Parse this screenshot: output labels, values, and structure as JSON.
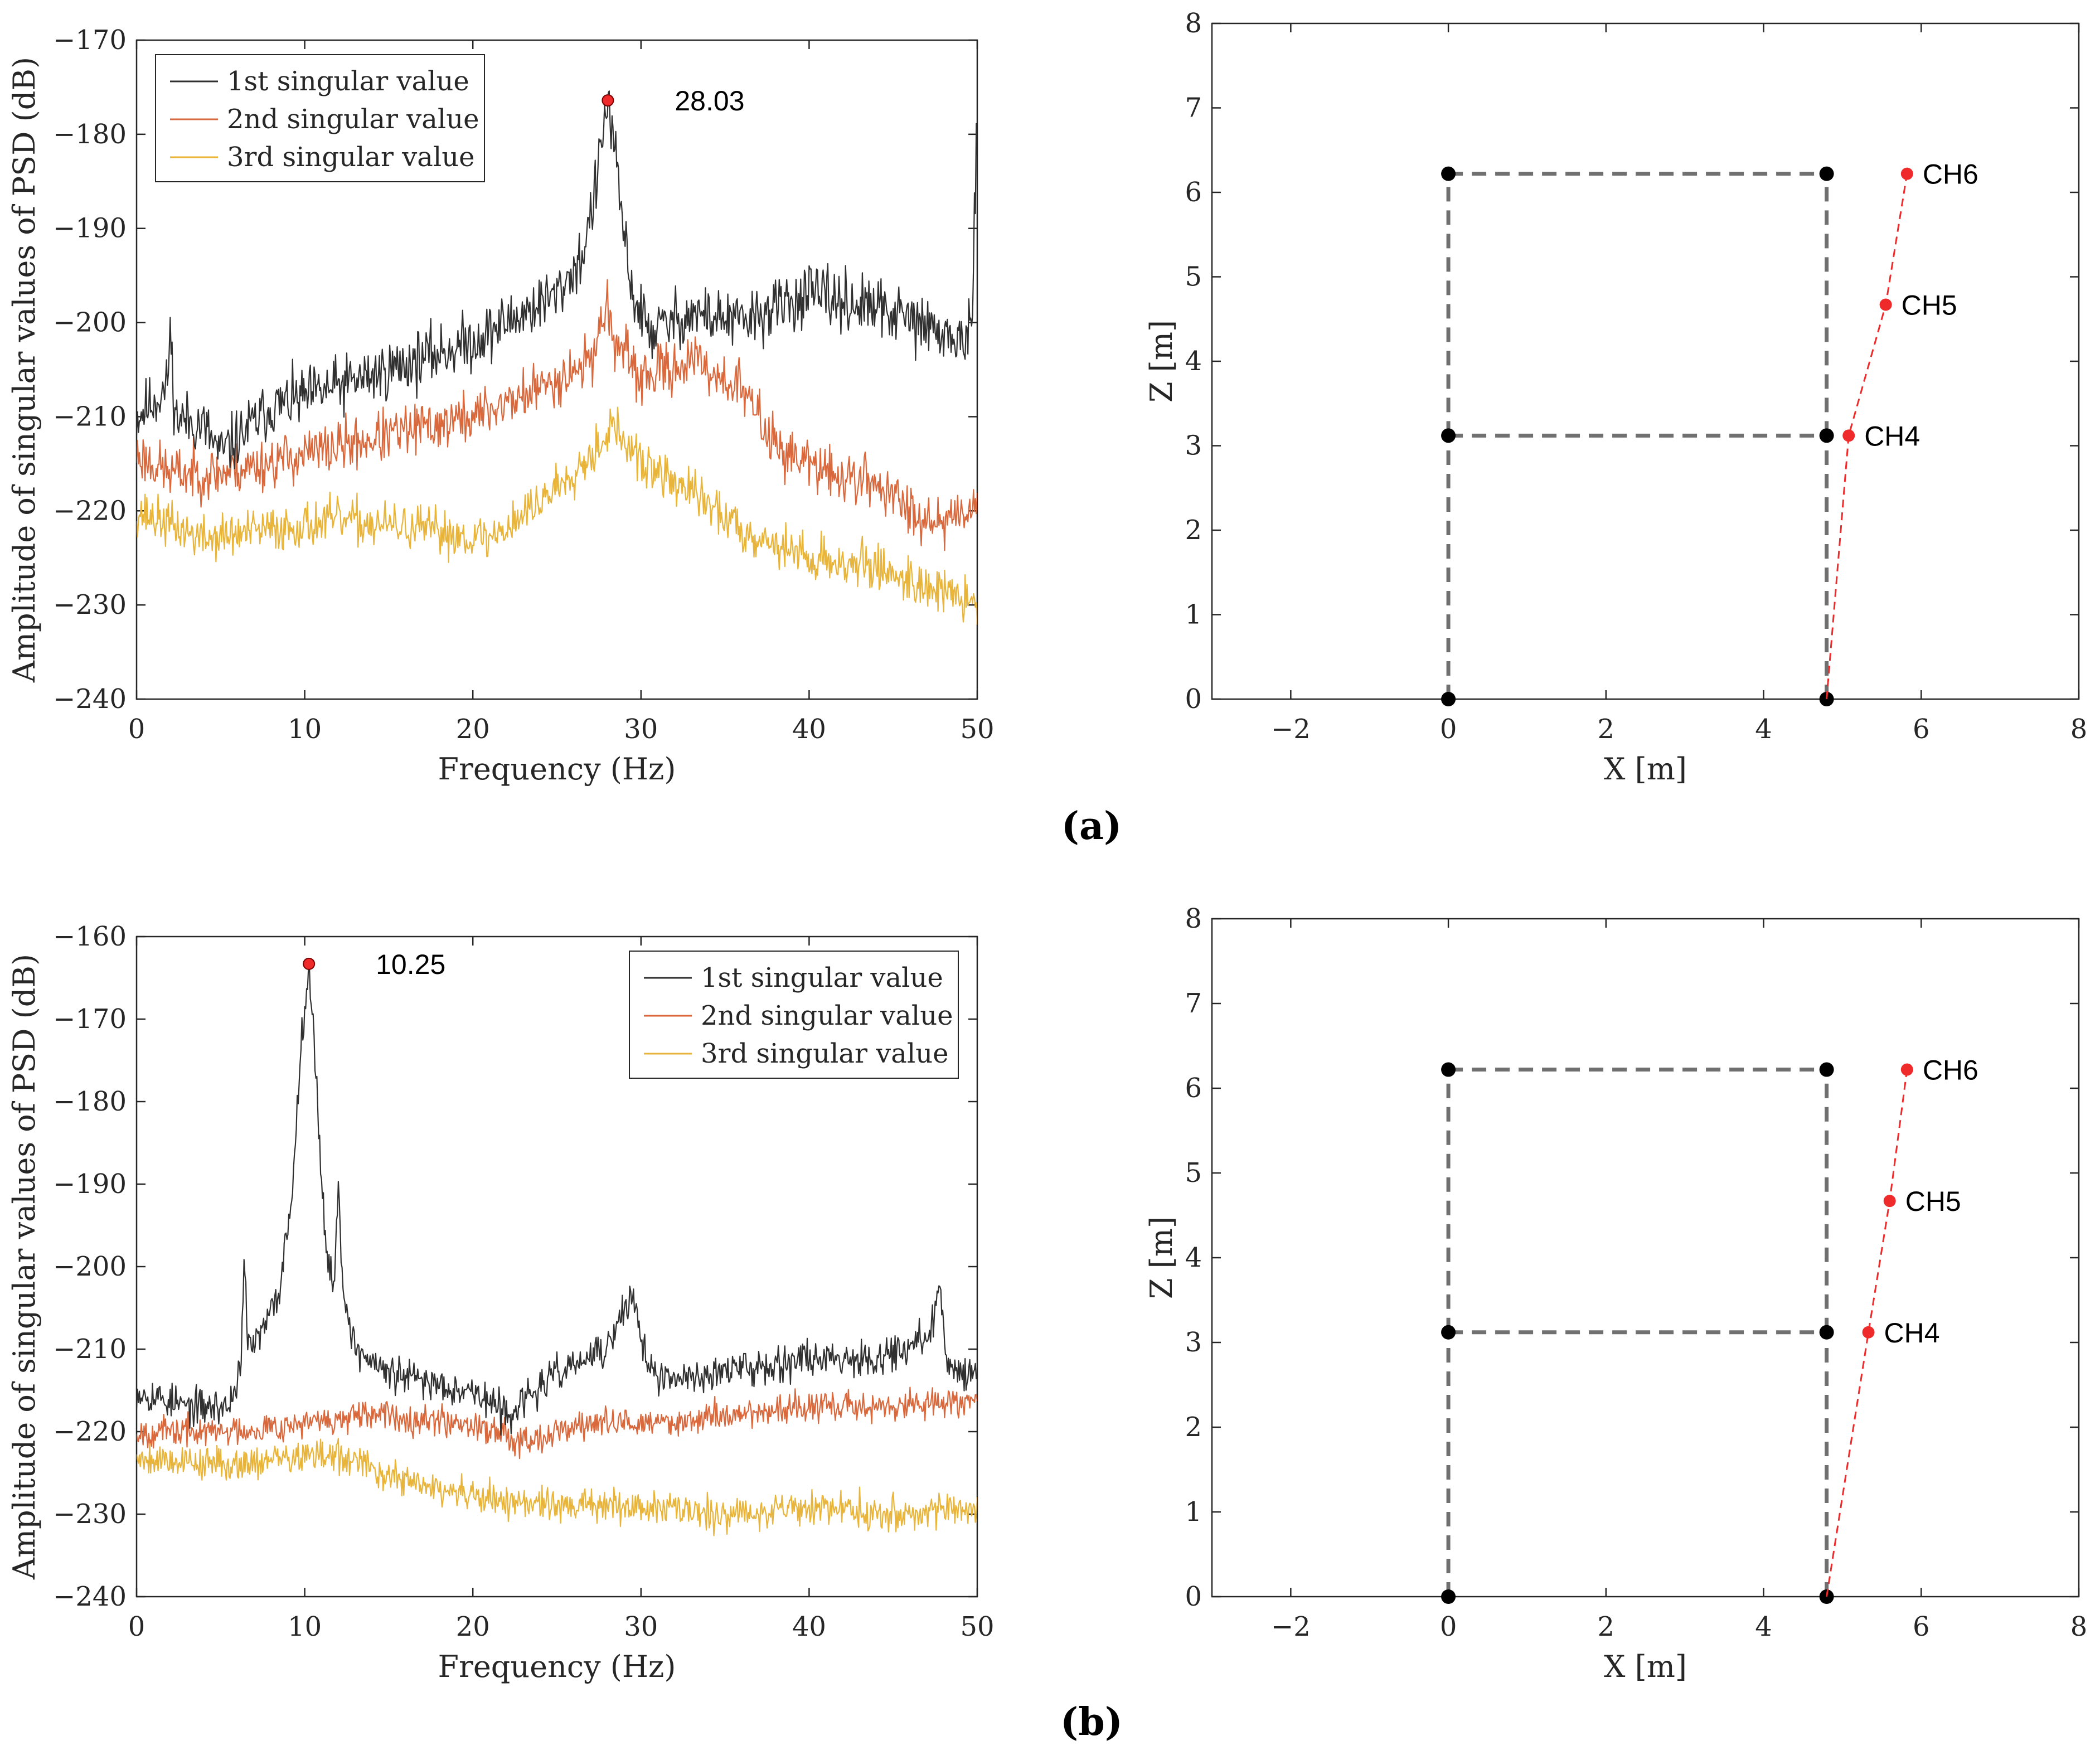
{
  "panels": [
    {
      "id": "a",
      "label": "(a)",
      "psd_chart": {
        "type": "line",
        "xlabel": "Frequency (Hz)",
        "ylabel": "Amplitude of singular values of PSD (dB)",
        "xlim": [
          0,
          50
        ],
        "ylim": [
          -240,
          -170
        ],
        "xticks": [
          0,
          10,
          20,
          30,
          40,
          50
        ],
        "yticks": [
          -240,
          -230,
          -220,
          -210,
          -200,
          -190,
          -180,
          -170
        ],
        "legend_position": "top-left",
        "peak": {
          "x": 28.03,
          "y": -176.4,
          "label": "28.03"
        },
        "series": [
          {
            "name": "1st singular value",
            "color": "#303030",
            "profile": [
              [
                0,
                -210
              ],
              [
                1.8,
                -207
              ],
              [
                2,
                -201
              ],
              [
                2.3,
                -210
              ],
              [
                4,
                -211
              ],
              [
                5,
                -214
              ],
              [
                8,
                -209
              ],
              [
                10,
                -208
              ],
              [
                15,
                -205
              ],
              [
                20,
                -202
              ],
              [
                23,
                -199
              ],
              [
                25,
                -197
              ],
              [
                26.5,
                -193
              ],
              [
                27.3,
                -186
              ],
              [
                27.8,
                -179
              ],
              [
                28.03,
                -176.4
              ],
              [
                28.3,
                -180
              ],
              [
                28.8,
                -188
              ],
              [
                29.5,
                -197
              ],
              [
                30.5,
                -201
              ],
              [
                33,
                -199
              ],
              [
                36,
                -200
              ],
              [
                40,
                -197
              ],
              [
                45,
                -199
              ],
              [
                49,
                -202
              ],
              [
                49.7,
                -201
              ],
              [
                50,
                -178
              ]
            ],
            "noise": 2.6,
            "seed": 11
          },
          {
            "name": "2nd singular value",
            "color": "#d9693d",
            "profile": [
              [
                0,
                -214
              ],
              [
                2,
                -216
              ],
              [
                5,
                -216
              ],
              [
                10,
                -214
              ],
              [
                15,
                -212
              ],
              [
                20,
                -210
              ],
              [
                24,
                -207
              ],
              [
                27,
                -204
              ],
              [
                28,
                -198
              ],
              [
                28.4,
                -202
              ],
              [
                30,
                -206
              ],
              [
                33,
                -204
              ],
              [
                36,
                -207
              ],
              [
                38,
                -213
              ],
              [
                41,
                -216
              ],
              [
                44,
                -217
              ],
              [
                46,
                -220
              ],
              [
                48,
                -221
              ],
              [
                50,
                -219
              ]
            ],
            "noise": 2.3,
            "seed": 23
          },
          {
            "name": "3rd singular value",
            "color": "#e8b43a",
            "profile": [
              [
                0,
                -220
              ],
              [
                4,
                -223
              ],
              [
                8,
                -222
              ],
              [
                12,
                -221
              ],
              [
                17,
                -222
              ],
              [
                21,
                -223
              ],
              [
                24,
                -219
              ],
              [
                27,
                -214
              ],
              [
                28.3,
                -211
              ],
              [
                30,
                -215
              ],
              [
                33,
                -218
              ],
              [
                36,
                -222
              ],
              [
                40,
                -225
              ],
              [
                44,
                -226
              ],
              [
                47,
                -228
              ],
              [
                50,
                -230
              ]
            ],
            "noise": 2.0,
            "seed": 37
          }
        ]
      },
      "mode_chart": {
        "type": "scatter",
        "xlabel": "X [m]",
        "ylabel": "Z [m]",
        "xlim": [
          -3,
          8
        ],
        "ylim": [
          0,
          8
        ],
        "xticks": [
          -2,
          0,
          2,
          4,
          6,
          8
        ],
        "yticks": [
          0,
          1,
          2,
          3,
          4,
          5,
          6,
          7,
          8
        ],
        "frame_nodes": [
          [
            0,
            0
          ],
          [
            4.8,
            0
          ],
          [
            0,
            3.12
          ],
          [
            4.8,
            3.12
          ],
          [
            0,
            6.22
          ],
          [
            4.8,
            6.22
          ]
        ],
        "frame_color": "#707070",
        "mode_shape": [
          [
            4.8,
            0
          ],
          [
            5.08,
            3.12
          ],
          [
            5.55,
            4.67
          ],
          [
            5.82,
            6.22
          ]
        ],
        "mode_color": "#ee2a2a",
        "channels": [
          {
            "label": "CH4",
            "x": 5.08,
            "y": 3.12
          },
          {
            "label": "CH5",
            "x": 5.55,
            "y": 4.67
          },
          {
            "label": "CH6",
            "x": 5.82,
            "y": 6.22
          }
        ]
      }
    },
    {
      "id": "b",
      "label": "(b)",
      "psd_chart": {
        "type": "line",
        "xlabel": "Frequency (Hz)",
        "ylabel": "Amplitude of singular values of PSD (dB)",
        "xlim": [
          0,
          50
        ],
        "ylim": [
          -240,
          -160
        ],
        "xticks": [
          0,
          10,
          20,
          30,
          40,
          50
        ],
        "yticks": [
          -240,
          -230,
          -220,
          -210,
          -200,
          -190,
          -180,
          -170,
          -160
        ],
        "legend_position": "top-right",
        "peak": {
          "x": 10.25,
          "y": -163.3,
          "label": "10.25"
        },
        "series": [
          {
            "name": "1st singular value",
            "color": "#303030",
            "profile": [
              [
                0,
                -215
              ],
              [
                3,
                -217
              ],
              [
                5.5,
                -217
              ],
              [
                6.2,
                -212
              ],
              [
                6.4,
                -198
              ],
              [
                6.6,
                -210
              ],
              [
                7.5,
                -208
              ],
              [
                8.5,
                -203
              ],
              [
                9.3,
                -190
              ],
              [
                9.8,
                -172
              ],
              [
                10.25,
                -163.3
              ],
              [
                10.7,
                -178
              ],
              [
                11.2,
                -196
              ],
              [
                11.7,
                -203
              ],
              [
                12,
                -191
              ],
              [
                12.3,
                -203
              ],
              [
                13,
                -210
              ],
              [
                15,
                -213
              ],
              [
                20,
                -215
              ],
              [
                22,
                -218
              ],
              [
                25,
                -213
              ],
              [
                28,
                -210
              ],
              [
                29.5,
                -203
              ],
              [
                30,
                -209
              ],
              [
                31,
                -214
              ],
              [
                34,
                -213
              ],
              [
                40,
                -211
              ],
              [
                44,
                -211
              ],
              [
                47,
                -209
              ],
              [
                47.8,
                -203
              ],
              [
                48.2,
                -212
              ],
              [
                50,
                -213
              ]
            ],
            "noise": 1.8,
            "seed": 53
          },
          {
            "name": "2nd singular value",
            "color": "#d9693d",
            "profile": [
              [
                0,
                -220
              ],
              [
                5,
                -220
              ],
              [
                10,
                -219
              ],
              [
                15,
                -218
              ],
              [
                20,
                -219
              ],
              [
                23,
                -221
              ],
              [
                27,
                -219
              ],
              [
                31,
                -219
              ],
              [
                35,
                -218
              ],
              [
                40,
                -217
              ],
              [
                45,
                -217
              ],
              [
                50,
                -216
              ]
            ],
            "noise": 1.5,
            "seed": 67
          },
          {
            "name": "3rd singular value",
            "color": "#e8b43a",
            "profile": [
              [
                0,
                -223
              ],
              [
                5,
                -224
              ],
              [
                10,
                -223
              ],
              [
                12,
                -223
              ],
              [
                16,
                -226
              ],
              [
                20,
                -228
              ],
              [
                25,
                -229
              ],
              [
                30,
                -229
              ],
              [
                35,
                -230
              ],
              [
                40,
                -229
              ],
              [
                45,
                -230
              ],
              [
                50,
                -229
              ]
            ],
            "noise": 1.7,
            "seed": 79
          }
        ]
      },
      "mode_chart": {
        "type": "scatter",
        "xlabel": "X [m]",
        "ylabel": "Z [m]",
        "xlim": [
          -3,
          8
        ],
        "ylim": [
          0,
          8
        ],
        "xticks": [
          -2,
          0,
          2,
          4,
          6,
          8
        ],
        "yticks": [
          0,
          1,
          2,
          3,
          4,
          5,
          6,
          7,
          8
        ],
        "frame_nodes": [
          [
            0,
            0
          ],
          [
            4.8,
            0
          ],
          [
            0,
            3.12
          ],
          [
            4.8,
            3.12
          ],
          [
            0,
            6.22
          ],
          [
            4.8,
            6.22
          ]
        ],
        "frame_color": "#707070",
        "mode_shape": [
          [
            4.8,
            0
          ],
          [
            5.33,
            3.12
          ],
          [
            5.6,
            4.67
          ],
          [
            5.82,
            6.22
          ]
        ],
        "mode_color": "#ee2a2a",
        "channels": [
          {
            "label": "CH4",
            "x": 5.33,
            "y": 3.12
          },
          {
            "label": "CH5",
            "x": 5.6,
            "y": 4.67
          },
          {
            "label": "CH6",
            "x": 5.82,
            "y": 6.22
          }
        ]
      }
    }
  ]
}
